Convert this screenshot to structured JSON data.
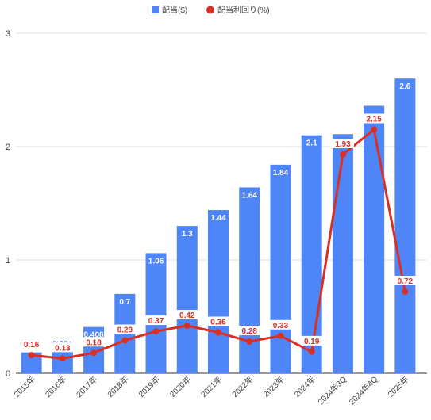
{
  "chart_data": {
    "type": "bar",
    "categories": [
      "2015年",
      "2016年",
      "2017年",
      "2018年",
      "2019年",
      "2020年",
      "2021年",
      "2022年",
      "2023年",
      "2024年",
      "2024年3Q",
      "2024年4Q",
      "2025年"
    ],
    "series": [
      {
        "name": "配当($)",
        "type": "bar",
        "color": "#4f86f7",
        "values": [
          0.184,
          0.204,
          0.408,
          0.7,
          1.06,
          1.3,
          1.44,
          1.64,
          1.84,
          2.1,
          2.11,
          2.36,
          2.6
        ],
        "labels": [
          "0.184",
          "0.204",
          "0.408",
          "0.7",
          "1.06",
          "1.3",
          "1.44",
          "1.64",
          "1.84",
          "2.1",
          "",
          "",
          "2.6"
        ]
      },
      {
        "name": "配当利回り(%)",
        "type": "line",
        "color": "#d93025",
        "values": [
          0.16,
          0.13,
          0.18,
          0.29,
          0.37,
          0.42,
          0.36,
          0.28,
          0.33,
          0.19,
          1.93,
          2.15,
          0.72
        ],
        "labels": [
          "0.16",
          "0.13",
          "0.18",
          "0.29",
          "0.37",
          "0.42",
          "0.36",
          "0.28",
          "0.33",
          "0.19",
          "1.93",
          "2.15",
          "0.72"
        ]
      }
    ],
    "ylim": [
      0,
      3
    ],
    "yticks": [
      0,
      1,
      2,
      3
    ],
    "grid": true,
    "legend": "top-center",
    "title": "",
    "xlabel": "",
    "ylabel": ""
  }
}
